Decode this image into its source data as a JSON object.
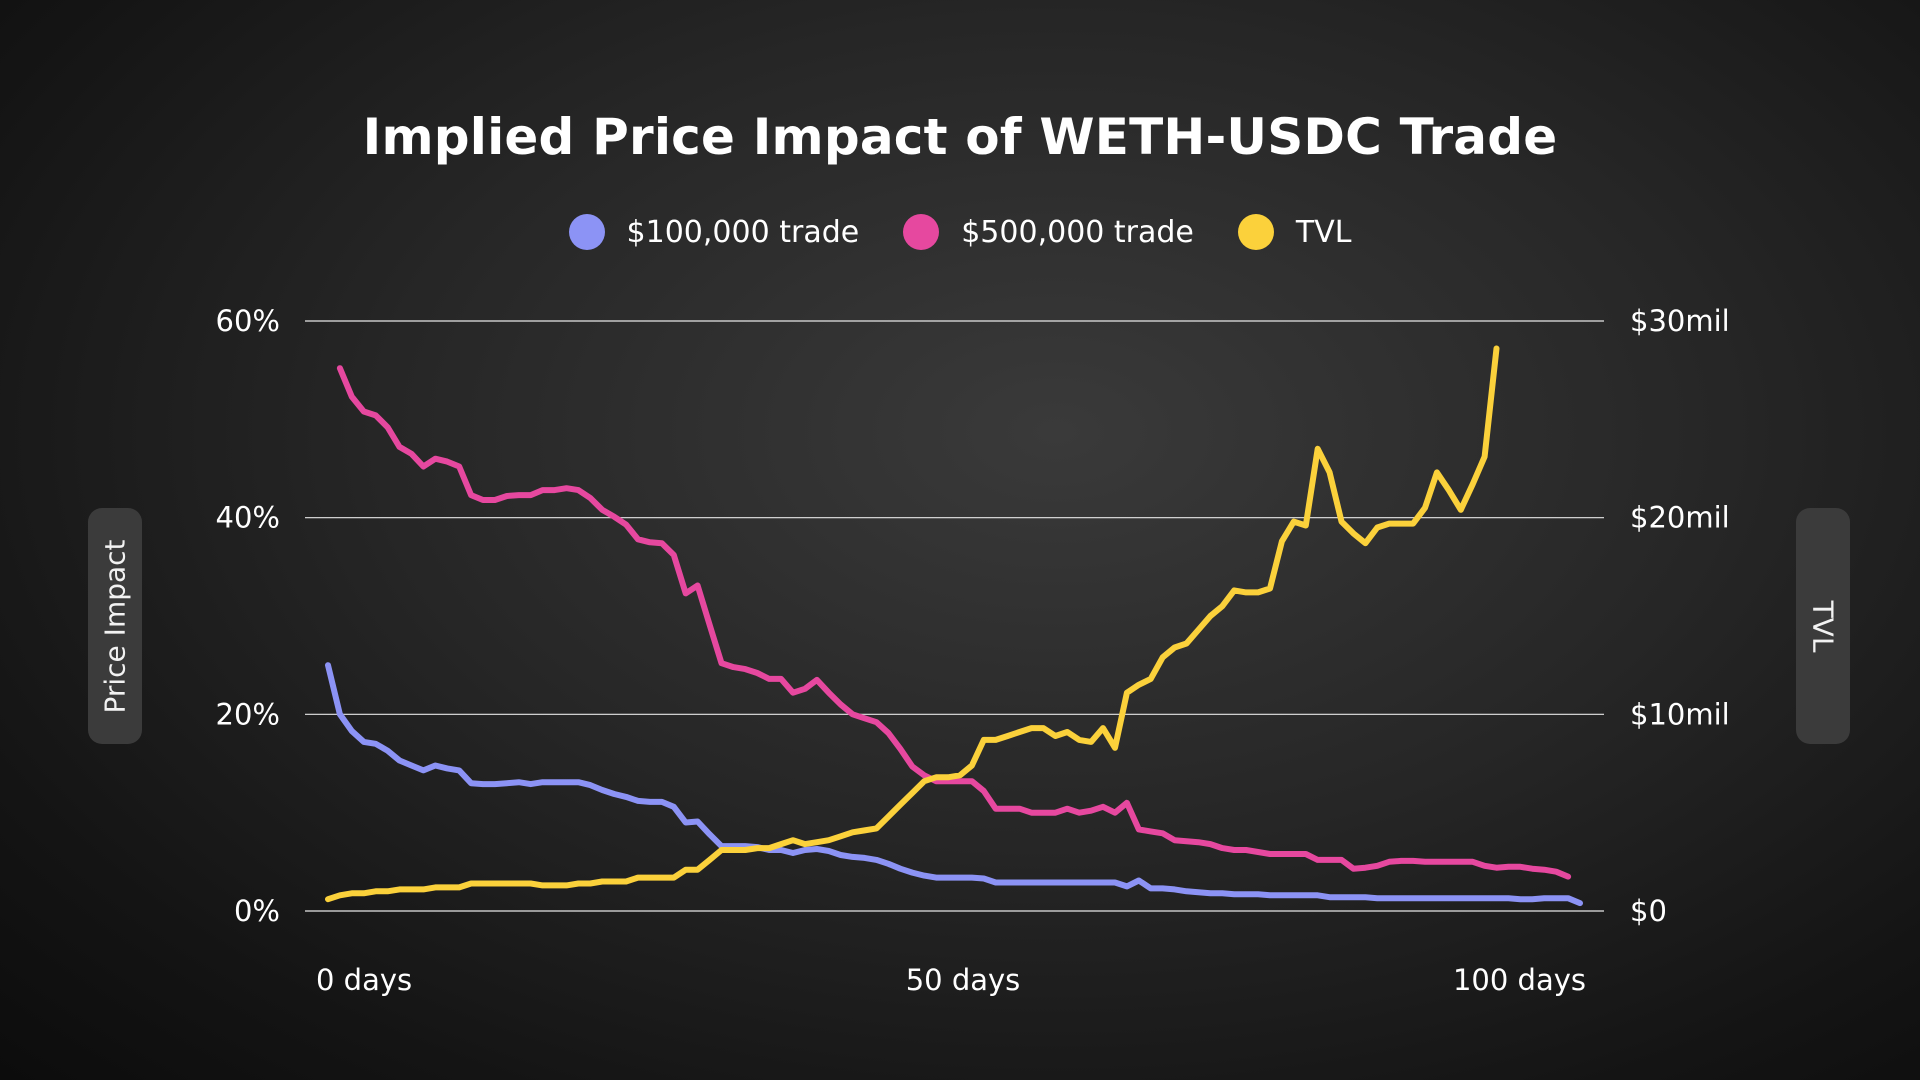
{
  "chart_data": {
    "type": "line",
    "title": "Implied Price Impact of WETH-USDC Trade",
    "xlabel": "",
    "ylabel": "Price Impact",
    "y2label": "TVL",
    "xlim": [
      0,
      105
    ],
    "ylim": [
      0,
      60
    ],
    "y2lim": [
      0,
      30
    ],
    "grid": true,
    "legend_position": "top-center",
    "x_ticks": [
      {
        "value": 0,
        "label": "0 days"
      },
      {
        "value": 50,
        "label": "50 days"
      },
      {
        "value": 100,
        "label": "100 days"
      }
    ],
    "y_ticks": [
      {
        "value": 0,
        "label": "0%"
      },
      {
        "value": 20,
        "label": "20%"
      },
      {
        "value": 40,
        "label": "40%"
      },
      {
        "value": 60,
        "label": "60%"
      }
    ],
    "y2_ticks": [
      {
        "value": 0,
        "label": "$0"
      },
      {
        "value": 10,
        "label": "$10mil"
      },
      {
        "value": 20,
        "label": "$20mil"
      },
      {
        "value": 30,
        "label": "$30mil"
      }
    ],
    "series": [
      {
        "name": "$100,000 trade",
        "color": "#8c93f5",
        "axis": "left",
        "points": [
          [
            0,
            25
          ],
          [
            1,
            20
          ],
          [
            2,
            18.3
          ],
          [
            3,
            17.2
          ],
          [
            4,
            17
          ],
          [
            5,
            16.3
          ],
          [
            6,
            15.3
          ],
          [
            7,
            14.8
          ],
          [
            8,
            14.3
          ],
          [
            9,
            14.8
          ],
          [
            10,
            14.5
          ],
          [
            11,
            14.3
          ],
          [
            12,
            13
          ],
          [
            13,
            12.9
          ],
          [
            14,
            12.9
          ],
          [
            15,
            13
          ],
          [
            16,
            13.1
          ],
          [
            17,
            12.9
          ],
          [
            18,
            13.1
          ],
          [
            19,
            13.1
          ],
          [
            20,
            13.1
          ],
          [
            21,
            13.1
          ],
          [
            22,
            12.8
          ],
          [
            23,
            12.3
          ],
          [
            24,
            11.9
          ],
          [
            25,
            11.6
          ],
          [
            26,
            11.2
          ],
          [
            27,
            11.1
          ],
          [
            28,
            11.1
          ],
          [
            29,
            10.6
          ],
          [
            30,
            9
          ],
          [
            31,
            9.1
          ],
          [
            32,
            7.8
          ],
          [
            33,
            6.6
          ],
          [
            34,
            6.6
          ],
          [
            35,
            6.6
          ],
          [
            36,
            6.5
          ],
          [
            37,
            6.2
          ],
          [
            38,
            6.2
          ],
          [
            39,
            5.9
          ],
          [
            40,
            6.2
          ],
          [
            41,
            6.3
          ],
          [
            42,
            6.1
          ],
          [
            43,
            5.7
          ],
          [
            44,
            5.5
          ],
          [
            45,
            5.4
          ],
          [
            46,
            5.2
          ],
          [
            47,
            4.8
          ],
          [
            48,
            4.3
          ],
          [
            49,
            3.9
          ],
          [
            50,
            3.6
          ],
          [
            51,
            3.4
          ],
          [
            52,
            3.4
          ],
          [
            53,
            3.4
          ],
          [
            54,
            3.4
          ],
          [
            55,
            3.3
          ],
          [
            56,
            2.9
          ],
          [
            57,
            2.9
          ],
          [
            58,
            2.9
          ],
          [
            59,
            2.9
          ],
          [
            60,
            2.9
          ],
          [
            61,
            2.9
          ],
          [
            62,
            2.9
          ],
          [
            63,
            2.9
          ],
          [
            64,
            2.9
          ],
          [
            65,
            2.9
          ],
          [
            66,
            2.9
          ],
          [
            67,
            2.5
          ],
          [
            68,
            3.1
          ],
          [
            69,
            2.3
          ],
          [
            70,
            2.3
          ],
          [
            71,
            2.2
          ],
          [
            72,
            2
          ],
          [
            73,
            1.9
          ],
          [
            74,
            1.8
          ],
          [
            75,
            1.8
          ],
          [
            76,
            1.7
          ],
          [
            77,
            1.7
          ],
          [
            78,
            1.7
          ],
          [
            79,
            1.6
          ],
          [
            80,
            1.6
          ],
          [
            81,
            1.6
          ],
          [
            82,
            1.6
          ],
          [
            83,
            1.6
          ],
          [
            84,
            1.4
          ],
          [
            85,
            1.4
          ],
          [
            86,
            1.4
          ],
          [
            87,
            1.4
          ],
          [
            88,
            1.3
          ],
          [
            89,
            1.3
          ],
          [
            90,
            1.3
          ],
          [
            91,
            1.3
          ],
          [
            92,
            1.3
          ],
          [
            93,
            1.3
          ],
          [
            94,
            1.3
          ],
          [
            95,
            1.3
          ],
          [
            96,
            1.3
          ],
          [
            97,
            1.3
          ],
          [
            98,
            1.3
          ],
          [
            99,
            1.3
          ],
          [
            100,
            1.2
          ],
          [
            101,
            1.2
          ],
          [
            102,
            1.3
          ],
          [
            103,
            1.3
          ],
          [
            104,
            1.3
          ],
          [
            105,
            0.8
          ]
        ]
      },
      {
        "name": "$500,000 trade",
        "color": "#e6489f",
        "axis": "left",
        "points": [
          [
            1,
            55.2
          ],
          [
            2,
            52.3
          ],
          [
            3,
            50.8
          ],
          [
            4,
            50.4
          ],
          [
            5,
            49.2
          ],
          [
            6,
            47.2
          ],
          [
            7,
            46.5
          ],
          [
            8,
            45.2
          ],
          [
            9,
            46
          ],
          [
            10,
            45.7
          ],
          [
            11,
            45.2
          ],
          [
            12,
            42.3
          ],
          [
            13,
            41.8
          ],
          [
            14,
            41.8
          ],
          [
            15,
            42.2
          ],
          [
            16,
            42.3
          ],
          [
            17,
            42.3
          ],
          [
            18,
            42.8
          ],
          [
            19,
            42.8
          ],
          [
            20,
            43
          ],
          [
            21,
            42.8
          ],
          [
            22,
            42
          ],
          [
            23,
            40.8
          ],
          [
            24,
            40.1
          ],
          [
            25,
            39.3
          ],
          [
            26,
            37.8
          ],
          [
            27,
            37.5
          ],
          [
            28,
            37.4
          ],
          [
            29,
            36.2
          ],
          [
            30,
            32.3
          ],
          [
            31,
            33.1
          ],
          [
            32,
            29.1
          ],
          [
            33,
            25.2
          ],
          [
            34,
            24.8
          ],
          [
            35,
            24.6
          ],
          [
            36,
            24.2
          ],
          [
            37,
            23.6
          ],
          [
            38,
            23.6
          ],
          [
            39,
            22.2
          ],
          [
            40,
            22.6
          ],
          [
            41,
            23.5
          ],
          [
            42,
            22.2
          ],
          [
            43,
            21
          ],
          [
            44,
            20
          ],
          [
            45,
            19.6
          ],
          [
            46,
            19.2
          ],
          [
            47,
            18.1
          ],
          [
            48,
            16.5
          ],
          [
            49,
            14.7
          ],
          [
            50,
            13.8
          ],
          [
            51,
            13.2
          ],
          [
            52,
            13.2
          ],
          [
            53,
            13.2
          ],
          [
            54,
            13.2
          ],
          [
            55,
            12.2
          ],
          [
            56,
            10.4
          ],
          [
            57,
            10.4
          ],
          [
            58,
            10.4
          ],
          [
            59,
            10
          ],
          [
            60,
            10
          ],
          [
            61,
            10
          ],
          [
            62,
            10.4
          ],
          [
            63,
            10
          ],
          [
            64,
            10.2
          ],
          [
            65,
            10.6
          ],
          [
            66,
            10
          ],
          [
            67,
            11
          ],
          [
            68,
            8.3
          ],
          [
            69,
            8.1
          ],
          [
            70,
            7.9
          ],
          [
            71,
            7.2
          ],
          [
            72,
            7.1
          ],
          [
            73,
            7
          ],
          [
            74,
            6.8
          ],
          [
            75,
            6.4
          ],
          [
            76,
            6.2
          ],
          [
            77,
            6.2
          ],
          [
            78,
            6
          ],
          [
            79,
            5.8
          ],
          [
            80,
            5.8
          ],
          [
            81,
            5.8
          ],
          [
            82,
            5.8
          ],
          [
            83,
            5.2
          ],
          [
            84,
            5.2
          ],
          [
            85,
            5.2
          ],
          [
            86,
            4.3
          ],
          [
            87,
            4.4
          ],
          [
            88,
            4.6
          ],
          [
            89,
            5
          ],
          [
            90,
            5.1
          ],
          [
            91,
            5.1
          ],
          [
            92,
            5
          ],
          [
            93,
            5
          ],
          [
            94,
            5
          ],
          [
            95,
            5
          ],
          [
            96,
            5
          ],
          [
            97,
            4.6
          ],
          [
            98,
            4.4
          ],
          [
            99,
            4.5
          ],
          [
            100,
            4.5
          ],
          [
            101,
            4.3
          ],
          [
            102,
            4.2
          ],
          [
            103,
            4
          ],
          [
            104,
            3.5
          ]
        ]
      },
      {
        "name": "TVL",
        "color": "#fbd13b",
        "axis": "right",
        "points": [
          [
            0,
            0.6
          ],
          [
            1,
            0.8
          ],
          [
            2,
            0.9
          ],
          [
            3,
            0.9
          ],
          [
            4,
            1
          ],
          [
            5,
            1
          ],
          [
            6,
            1.1
          ],
          [
            7,
            1.1
          ],
          [
            8,
            1.1
          ],
          [
            9,
            1.2
          ],
          [
            10,
            1.2
          ],
          [
            11,
            1.2
          ],
          [
            12,
            1.4
          ],
          [
            13,
            1.4
          ],
          [
            14,
            1.4
          ],
          [
            15,
            1.4
          ],
          [
            16,
            1.4
          ],
          [
            17,
            1.4
          ],
          [
            18,
            1.3
          ],
          [
            19,
            1.3
          ],
          [
            20,
            1.3
          ],
          [
            21,
            1.4
          ],
          [
            22,
            1.4
          ],
          [
            23,
            1.5
          ],
          [
            24,
            1.5
          ],
          [
            25,
            1.5
          ],
          [
            26,
            1.7
          ],
          [
            27,
            1.7
          ],
          [
            28,
            1.7
          ],
          [
            29,
            1.7
          ],
          [
            30,
            2.1
          ],
          [
            31,
            2.1
          ],
          [
            32,
            2.6
          ],
          [
            33,
            3.1
          ],
          [
            34,
            3.1
          ],
          [
            35,
            3.1
          ],
          [
            36,
            3.2
          ],
          [
            37,
            3.2
          ],
          [
            38,
            3.4
          ],
          [
            39,
            3.6
          ],
          [
            40,
            3.4
          ],
          [
            41,
            3.5
          ],
          [
            42,
            3.6
          ],
          [
            43,
            3.8
          ],
          [
            44,
            4
          ],
          [
            45,
            4.1
          ],
          [
            46,
            4.2
          ],
          [
            47,
            4.8
          ],
          [
            48,
            5.4
          ],
          [
            49,
            6
          ],
          [
            50,
            6.6
          ],
          [
            51,
            6.8
          ],
          [
            52,
            6.8
          ],
          [
            53,
            6.9
          ],
          [
            54,
            7.4
          ],
          [
            55,
            8.7
          ],
          [
            56,
            8.7
          ],
          [
            57,
            8.9
          ],
          [
            58,
            9.1
          ],
          [
            59,
            9.3
          ],
          [
            60,
            9.3
          ],
          [
            61,
            8.9
          ],
          [
            62,
            9.1
          ],
          [
            63,
            8.7
          ],
          [
            64,
            8.6
          ],
          [
            65,
            9.3
          ],
          [
            66,
            8.3
          ],
          [
            67,
            11.1
          ],
          [
            68,
            11.5
          ],
          [
            69,
            11.8
          ],
          [
            70,
            12.9
          ],
          [
            71,
            13.4
          ],
          [
            72,
            13.6
          ],
          [
            73,
            14.3
          ],
          [
            74,
            15
          ],
          [
            75,
            15.5
          ],
          [
            76,
            16.3
          ],
          [
            77,
            16.2
          ],
          [
            78,
            16.2
          ],
          [
            79,
            16.4
          ],
          [
            80,
            18.8
          ],
          [
            81,
            19.8
          ],
          [
            82,
            19.6
          ],
          [
            83,
            23.5
          ],
          [
            84,
            22.3
          ],
          [
            85,
            19.8
          ],
          [
            86,
            19.2
          ],
          [
            87,
            18.7
          ],
          [
            88,
            19.5
          ],
          [
            89,
            19.7
          ],
          [
            90,
            19.7
          ],
          [
            91,
            19.7
          ],
          [
            92,
            20.5
          ],
          [
            93,
            22.3
          ],
          [
            94,
            21.4
          ],
          [
            95,
            20.4
          ],
          [
            96,
            21.7
          ],
          [
            97,
            23.1
          ],
          [
            98,
            28.6
          ]
        ]
      }
    ]
  }
}
